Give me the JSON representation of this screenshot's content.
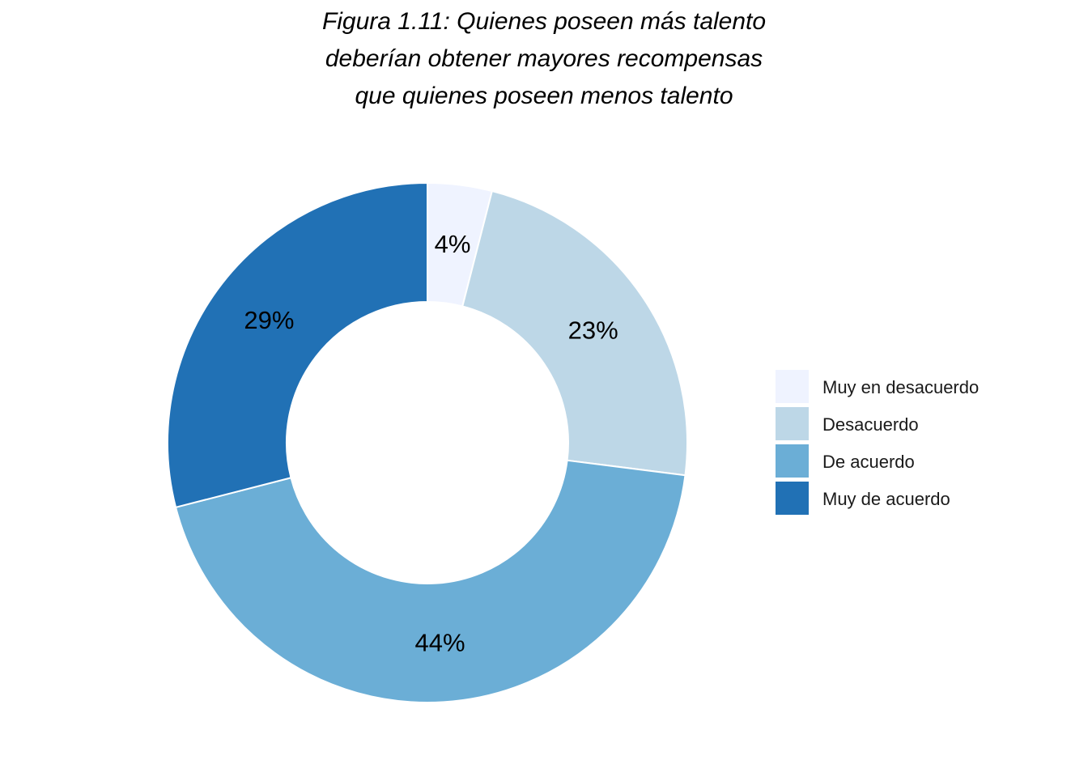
{
  "chart_data": {
    "type": "pie",
    "title_lines": [
      "Figura 1.11: Quienes poseen más talento",
      "deberían obtener mayores recompensas",
      "que quienes poseen menos talento"
    ],
    "categories": [
      "Muy en desacuerdo",
      "Desacuerdo",
      "De acuerdo",
      "Muy de acuerdo"
    ],
    "values": [
      4,
      23,
      44,
      29
    ],
    "labels": [
      "4%",
      "23%",
      "44%",
      "29%"
    ],
    "colors": [
      "#eff3ff",
      "#bdd7e7",
      "#6baed6",
      "#2171b5"
    ],
    "donut": true,
    "legend_position": "right"
  }
}
